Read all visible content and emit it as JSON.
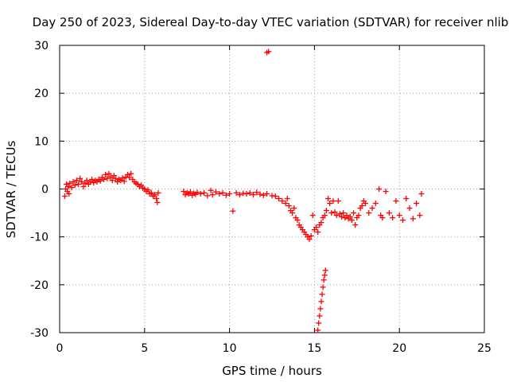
{
  "chart_data": {
    "type": "scatter",
    "title": "Day 250 of 2023, Sidereal Day-to-day VTEC variation (SDTVAR) for receiver nlib",
    "xlabel": "GPS time / hours",
    "ylabel": "SDTVAR / TECUs",
    "xlim": [
      0,
      25
    ],
    "ylim": [
      -30,
      30
    ],
    "xticks": [
      0,
      5,
      10,
      15,
      20,
      25
    ],
    "yticks": [
      -30,
      -20,
      -10,
      0,
      10,
      20,
      30
    ],
    "xtick_labels": [
      "0",
      "5",
      "10",
      "15",
      "20",
      "25"
    ],
    "ytick_labels": [
      "-30",
      "-20",
      "-10",
      "0",
      "10",
      "20",
      "30"
    ],
    "grid": true,
    "marker": "+",
    "color": "#ff0000",
    "series": [
      {
        "name": "SDTVAR",
        "points": [
          [
            0.3,
            -1.5
          ],
          [
            0.35,
            0.0
          ],
          [
            0.4,
            1.0
          ],
          [
            0.45,
            -0.5
          ],
          [
            0.5,
            0.5
          ],
          [
            0.55,
            -1.0
          ],
          [
            0.6,
            1.2
          ],
          [
            0.7,
            0.3
          ],
          [
            0.8,
            1.5
          ],
          [
            0.9,
            0.8
          ],
          [
            1.0,
            1.8
          ],
          [
            1.1,
            1.0
          ],
          [
            1.2,
            2.2
          ],
          [
            1.3,
            1.5
          ],
          [
            1.4,
            0.5
          ],
          [
            1.5,
            1.2
          ],
          [
            1.6,
            1.8
          ],
          [
            1.7,
            1.0
          ],
          [
            1.8,
            1.5
          ],
          [
            1.9,
            2.0
          ],
          [
            2.0,
            1.3
          ],
          [
            2.1,
            1.8
          ],
          [
            2.2,
            1.5
          ],
          [
            2.3,
            2.0
          ],
          [
            2.4,
            1.7
          ],
          [
            2.5,
            2.4
          ],
          [
            2.6,
            2.0
          ],
          [
            2.7,
            3.0
          ],
          [
            2.8,
            2.2
          ],
          [
            2.9,
            3.2
          ],
          [
            3.0,
            2.5
          ],
          [
            3.1,
            1.8
          ],
          [
            3.2,
            2.8
          ],
          [
            3.3,
            2.2
          ],
          [
            3.4,
            1.5
          ],
          [
            3.5,
            2.0
          ],
          [
            3.6,
            1.8
          ],
          [
            3.7,
            2.3
          ],
          [
            3.8,
            1.6
          ],
          [
            3.9,
            2.5
          ],
          [
            4.0,
            3.0
          ],
          [
            4.1,
            2.4
          ],
          [
            4.2,
            3.2
          ],
          [
            4.3,
            2.0
          ],
          [
            4.4,
            1.5
          ],
          [
            4.5,
            1.2
          ],
          [
            4.6,
            1.0
          ],
          [
            4.7,
            0.5
          ],
          [
            4.8,
            0.8
          ],
          [
            4.9,
            0.2
          ],
          [
            5.0,
            0.0
          ],
          [
            5.1,
            -0.5
          ],
          [
            5.2,
            -0.2
          ],
          [
            5.3,
            -1.0
          ],
          [
            5.4,
            -0.8
          ],
          [
            5.5,
            -1.5
          ],
          [
            5.6,
            -1.2
          ],
          [
            5.7,
            -2.0
          ],
          [
            5.75,
            -2.8
          ],
          [
            5.8,
            -0.8
          ],
          [
            7.3,
            -0.5
          ],
          [
            7.4,
            -1.2
          ],
          [
            7.5,
            -0.8
          ],
          [
            7.6,
            -1.0
          ],
          [
            7.7,
            -0.6
          ],
          [
            7.8,
            -1.3
          ],
          [
            7.9,
            -0.9
          ],
          [
            8.0,
            -1.1
          ],
          [
            8.1,
            -0.7
          ],
          [
            8.3,
            -1.0
          ],
          [
            8.5,
            -0.8
          ],
          [
            8.7,
            -1.4
          ],
          [
            8.9,
            -0.3
          ],
          [
            9.0,
            -1.2
          ],
          [
            9.2,
            -0.6
          ],
          [
            9.4,
            -1.0
          ],
          [
            9.6,
            -0.8
          ],
          [
            9.8,
            -1.3
          ],
          [
            10.0,
            -1.0
          ],
          [
            10.2,
            -4.6
          ],
          [
            10.4,
            -0.8
          ],
          [
            10.6,
            -1.2
          ],
          [
            10.8,
            -0.9
          ],
          [
            11.0,
            -1.0
          ],
          [
            11.2,
            -0.8
          ],
          [
            11.4,
            -1.2
          ],
          [
            11.6,
            -0.7
          ],
          [
            11.8,
            -1.1
          ],
          [
            12.0,
            -1.3
          ],
          [
            12.2,
            -1.0
          ],
          [
            12.2,
            28.5
          ],
          [
            12.3,
            28.7
          ],
          [
            12.5,
            -1.4
          ],
          [
            12.7,
            -1.5
          ],
          [
            12.9,
            -2.0
          ],
          [
            13.1,
            -2.5
          ],
          [
            13.3,
            -3.0
          ],
          [
            13.4,
            -2.0
          ],
          [
            13.5,
            -3.5
          ],
          [
            13.6,
            -4.5
          ],
          [
            13.7,
            -5.0
          ],
          [
            13.8,
            -4.0
          ],
          [
            13.9,
            -6.0
          ],
          [
            14.0,
            -6.5
          ],
          [
            14.1,
            -7.5
          ],
          [
            14.2,
            -8.0
          ],
          [
            14.3,
            -8.5
          ],
          [
            14.4,
            -9.0
          ],
          [
            14.5,
            -9.5
          ],
          [
            14.6,
            -10.0
          ],
          [
            14.7,
            -10.5
          ],
          [
            14.8,
            -9.8
          ],
          [
            14.9,
            -5.5
          ],
          [
            15.0,
            -8.5
          ],
          [
            15.1,
            -8.0
          ],
          [
            15.2,
            -9.0
          ],
          [
            15.3,
            -7.5
          ],
          [
            15.4,
            -7.0
          ],
          [
            15.5,
            -6.0
          ],
          [
            15.6,
            -5.5
          ],
          [
            15.7,
            -4.5
          ],
          [
            15.8,
            -2.0
          ],
          [
            15.9,
            -3.0
          ],
          [
            16.0,
            -5.0
          ],
          [
            16.1,
            -2.5
          ],
          [
            16.2,
            -4.8
          ],
          [
            16.3,
            -5.5
          ],
          [
            16.4,
            -2.5
          ],
          [
            16.5,
            -5.2
          ],
          [
            16.6,
            -5.8
          ],
          [
            16.7,
            -5.0
          ],
          [
            16.8,
            -6.0
          ],
          [
            16.9,
            -5.5
          ],
          [
            17.0,
            -6.2
          ],
          [
            17.1,
            -5.8
          ],
          [
            17.2,
            -6.5
          ],
          [
            17.3,
            -5.0
          ],
          [
            17.4,
            -7.5
          ],
          [
            17.5,
            -6.0
          ],
          [
            17.6,
            -5.5
          ],
          [
            17.7,
            -4.0
          ],
          [
            17.8,
            -3.5
          ],
          [
            17.9,
            -2.5
          ],
          [
            18.0,
            -3.0
          ],
          [
            18.2,
            -5.0
          ],
          [
            18.4,
            -4.0
          ],
          [
            18.6,
            -3.0
          ],
          [
            18.8,
            0.0
          ],
          [
            18.9,
            -5.5
          ],
          [
            19.0,
            -6.0
          ],
          [
            19.2,
            -0.5
          ],
          [
            19.4,
            -5.0
          ],
          [
            19.6,
            -6.0
          ],
          [
            19.8,
            -2.5
          ],
          [
            20.0,
            -5.5
          ],
          [
            20.2,
            -6.5
          ],
          [
            20.4,
            -2.0
          ],
          [
            20.6,
            -4.0
          ],
          [
            20.8,
            -6.2
          ],
          [
            21.0,
            -3.0
          ],
          [
            21.2,
            -5.5
          ],
          [
            21.3,
            -1.0
          ],
          [
            15.2,
            -29.5
          ],
          [
            15.25,
            -28.0
          ],
          [
            15.3,
            -26.5
          ],
          [
            15.35,
            -25.0
          ],
          [
            15.4,
            -23.5
          ],
          [
            15.45,
            -22.0
          ],
          [
            15.5,
            -20.5
          ],
          [
            15.55,
            -19.0
          ],
          [
            15.6,
            -18.0
          ],
          [
            15.65,
            -17.0
          ]
        ]
      }
    ]
  }
}
